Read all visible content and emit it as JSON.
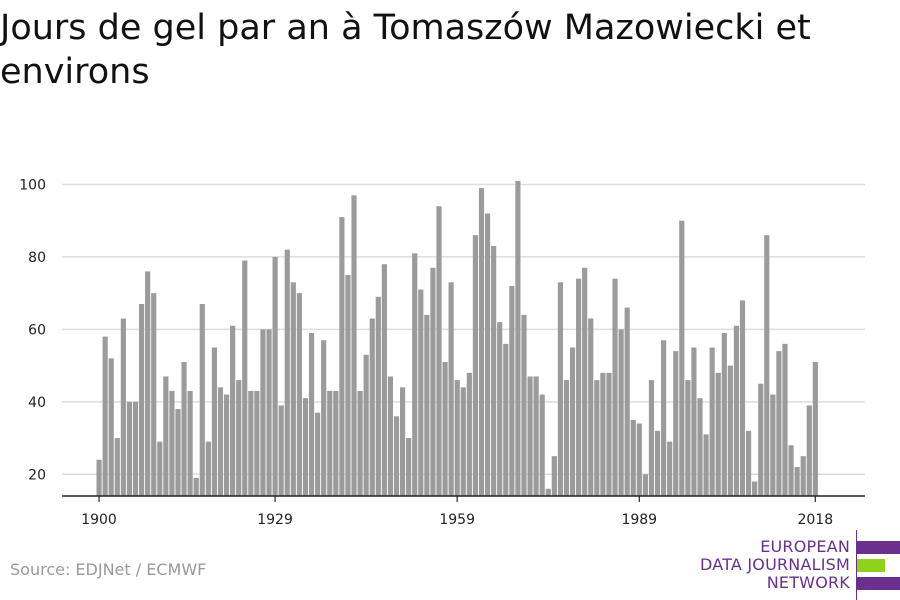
{
  "title": "Jours de gel par an à Tomaszów Mazowiecki et environs",
  "source": "Source: EDJNet / ECMWF",
  "logo": {
    "lines": [
      "EUROPEAN",
      "DATA JOURNALISM",
      "NETWORK"
    ],
    "colors": {
      "primary": "#6b2f8e",
      "accent": "#8fd11d"
    }
  },
  "colors": {
    "bar": "#9b9b9b",
    "grid": "#dddddd",
    "axis": "#222222",
    "tick_text": "#222222"
  },
  "chart_data": {
    "type": "bar",
    "title": "Jours de gel par an à Tomaszów Mazowiecki et environs",
    "xlabel": "",
    "ylabel": "",
    "x_ticks": [
      1900,
      1929,
      1959,
      1989,
      2018
    ],
    "y_ticks": [
      20,
      40,
      60,
      80,
      100
    ],
    "ylim": [
      14,
      104
    ],
    "grid": true,
    "x_start": 1900,
    "x_end": 2021,
    "values": [
      24,
      58,
      52,
      30,
      63,
      40,
      40,
      67,
      76,
      70,
      29,
      47,
      43,
      38,
      51,
      43,
      19,
      67,
      29,
      55,
      44,
      42,
      61,
      46,
      79,
      43,
      43,
      60,
      60,
      80,
      39,
      82,
      73,
      70,
      41,
      59,
      37,
      57,
      43,
      43,
      91,
      75,
      97,
      43,
      53,
      63,
      69,
      78,
      47,
      36,
      44,
      30,
      81,
      71,
      64,
      77,
      94,
      51,
      73,
      46,
      44,
      48,
      86,
      99,
      92,
      83,
      62,
      56,
      72,
      101,
      64,
      47,
      47,
      42,
      16,
      25,
      73,
      46,
      55,
      74,
      77,
      63,
      46,
      48,
      48,
      74,
      60,
      66,
      35,
      34,
      20,
      46,
      32,
      57,
      29,
      54,
      90,
      46,
      55,
      41,
      31,
      55,
      48,
      59,
      50,
      61,
      68,
      32,
      18,
      45,
      86,
      42,
      54,
      56,
      28,
      22,
      25,
      39,
      51
    ]
  }
}
